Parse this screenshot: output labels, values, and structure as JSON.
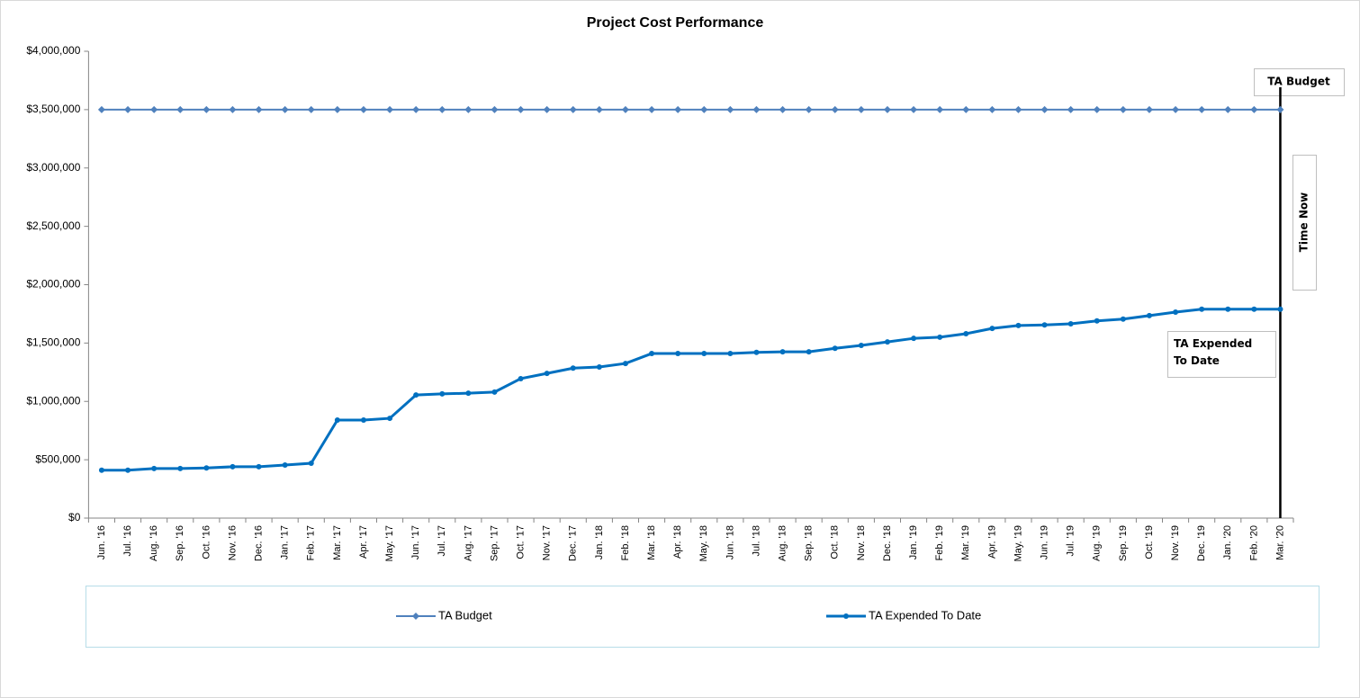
{
  "chart_data": {
    "type": "line",
    "title": "Project Cost Performance",
    "categories": [
      "Jun. '16",
      "Jul. '16",
      "Aug. '16",
      "Sep. '16",
      "Oct. '16",
      "Nov. '16",
      "Dec. '16",
      "Jan. '17",
      "Feb. '17",
      "Mar. '17",
      "Apr. '17",
      "May. '17",
      "Jun. '17",
      "Jul. '17",
      "Aug. '17",
      "Sep. '17",
      "Oct. '17",
      "Nov. '17",
      "Dec. '17",
      "Jan. '18",
      "Feb. '18",
      "Mar. '18",
      "Apr. '18",
      "May. '18",
      "Jun. '18",
      "Jul. '18",
      "Aug. '18",
      "Sep. '18",
      "Oct. '18",
      "Nov. '18",
      "Dec. '18",
      "Jan. '19",
      "Feb. '19",
      "Mar. '19",
      "Apr. '19",
      "May. '19",
      "Jun. '19",
      "Jul. '19",
      "Aug. '19",
      "Sep. '19",
      "Oct. '19",
      "Nov. '19",
      "Dec. '19",
      "Jan. '20",
      "Feb. '20",
      "Mar. '20"
    ],
    "series": [
      {
        "name": "TA Budget",
        "color": "#4f81bd",
        "marker": "diamond",
        "values": [
          3500000,
          3500000,
          3500000,
          3500000,
          3500000,
          3500000,
          3500000,
          3500000,
          3500000,
          3500000,
          3500000,
          3500000,
          3500000,
          3500000,
          3500000,
          3500000,
          3500000,
          3500000,
          3500000,
          3500000,
          3500000,
          3500000,
          3500000,
          3500000,
          3500000,
          3500000,
          3500000,
          3500000,
          3500000,
          3500000,
          3500000,
          3500000,
          3500000,
          3500000,
          3500000,
          3500000,
          3500000,
          3500000,
          3500000,
          3500000,
          3500000,
          3500000,
          3500000,
          3500000,
          3500000,
          3500000
        ]
      },
      {
        "name": "TA Expended To Date",
        "color": "#0070c0",
        "marker": "circle",
        "values": [
          410000,
          410000,
          425000,
          425000,
          430000,
          440000,
          440000,
          455000,
          470000,
          840000,
          840000,
          855000,
          1055000,
          1065000,
          1070000,
          1080000,
          1195000,
          1240000,
          1285000,
          1295000,
          1325000,
          1410000,
          1410000,
          1410000,
          1410000,
          1420000,
          1425000,
          1425000,
          1455000,
          1480000,
          1510000,
          1540000,
          1550000,
          1580000,
          1625000,
          1650000,
          1655000,
          1665000,
          1690000,
          1705000,
          1735000,
          1765000,
          1790000,
          1790000,
          1790000,
          1790000
        ]
      }
    ],
    "ylim": [
      0,
      4000000
    ],
    "yticks": [
      {
        "value": 0,
        "label": "$0"
      },
      {
        "value": 500000,
        "label": "$500,000"
      },
      {
        "value": 1000000,
        "label": "$1,000,000"
      },
      {
        "value": 1500000,
        "label": "$1,500,000"
      },
      {
        "value": 2000000,
        "label": "$2,000,000"
      },
      {
        "value": 2500000,
        "label": "$2,500,000"
      },
      {
        "value": 3000000,
        "label": "$3,000,000"
      },
      {
        "value": 3500000,
        "label": "$3,500,000"
      },
      {
        "value": 4000000,
        "label": "$4,000,000"
      }
    ],
    "grid": false,
    "legend": "bottom",
    "annotations": [
      "TA Budget",
      "Time Now",
      "TA Expended To Date"
    ]
  }
}
